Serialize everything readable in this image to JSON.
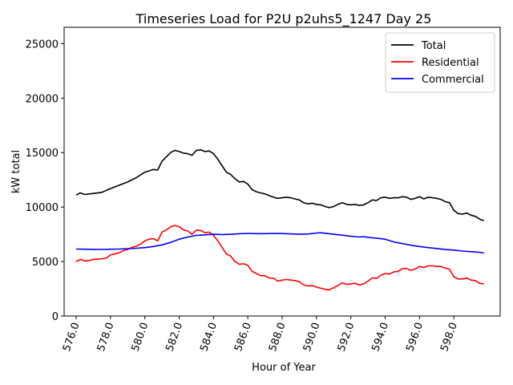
{
  "chart_data": {
    "type": "line",
    "title": "Timeseries Load for P2U p2uhs5_1247  Day 25",
    "xlabel": "Hour of Year",
    "ylabel": "kW total",
    "xlim": [
      575.3,
      600.7
    ],
    "ylim": [
      0,
      26500
    ],
    "xticks": [
      576,
      578,
      580,
      582,
      584,
      586,
      588,
      590,
      592,
      594,
      596,
      598
    ],
    "xtick_labels": [
      "576.0",
      "578.0",
      "580.0",
      "582.0",
      "584.0",
      "586.0",
      "588.0",
      "590.0",
      "592.0",
      "594.0",
      "596.0",
      "598.0"
    ],
    "yticks": [
      0,
      5000,
      10000,
      15000,
      20000,
      25000
    ],
    "ytick_labels": [
      "0",
      "5000",
      "10000",
      "15000",
      "20000",
      "25000"
    ],
    "grid": false,
    "legend_position": "top-right",
    "series": [
      {
        "name": "Total",
        "color": "#000000",
        "points": [
          [
            576.0,
            11100
          ],
          [
            576.25,
            11300
          ],
          [
            576.5,
            11150
          ],
          [
            577.0,
            11250
          ],
          [
            577.5,
            11350
          ],
          [
            578.0,
            11700
          ],
          [
            578.5,
            12000
          ],
          [
            579.0,
            12300
          ],
          [
            579.5,
            12700
          ],
          [
            580.0,
            13200
          ],
          [
            580.5,
            13450
          ],
          [
            580.75,
            13400
          ],
          [
            581.0,
            14200
          ],
          [
            581.25,
            14600
          ],
          [
            581.5,
            15000
          ],
          [
            581.75,
            15200
          ],
          [
            582.0,
            15100
          ],
          [
            582.25,
            14950
          ],
          [
            582.5,
            14900
          ],
          [
            582.75,
            14750
          ],
          [
            583.0,
            15200
          ],
          [
            583.25,
            15250
          ],
          [
            583.5,
            15100
          ],
          [
            583.75,
            15150
          ],
          [
            584.0,
            14900
          ],
          [
            584.25,
            14400
          ],
          [
            584.5,
            13800
          ],
          [
            584.75,
            13200
          ],
          [
            585.0,
            13000
          ],
          [
            585.25,
            12600
          ],
          [
            585.5,
            12300
          ],
          [
            585.75,
            12350
          ],
          [
            586.0,
            12100
          ],
          [
            586.25,
            11600
          ],
          [
            586.5,
            11400
          ],
          [
            586.75,
            11300
          ],
          [
            587.0,
            11200
          ],
          [
            587.25,
            11050
          ],
          [
            587.5,
            10900
          ],
          [
            587.75,
            10800
          ],
          [
            588.0,
            10850
          ],
          [
            588.25,
            10900
          ],
          [
            588.5,
            10850
          ],
          [
            588.75,
            10750
          ],
          [
            589.0,
            10650
          ],
          [
            589.25,
            10400
          ],
          [
            589.5,
            10300
          ],
          [
            589.75,
            10350
          ],
          [
            590.0,
            10250
          ],
          [
            590.25,
            10200
          ],
          [
            590.5,
            10050
          ],
          [
            590.75,
            9950
          ],
          [
            591.0,
            10050
          ],
          [
            591.25,
            10250
          ],
          [
            591.5,
            10400
          ],
          [
            591.75,
            10250
          ],
          [
            592.0,
            10200
          ],
          [
            592.25,
            10250
          ],
          [
            592.5,
            10150
          ],
          [
            592.75,
            10200
          ],
          [
            593.0,
            10400
          ],
          [
            593.25,
            10650
          ],
          [
            593.5,
            10600
          ],
          [
            593.75,
            10850
          ],
          [
            594.0,
            10900
          ],
          [
            594.25,
            10800
          ],
          [
            594.5,
            10850
          ],
          [
            594.75,
            10850
          ],
          [
            595.0,
            10950
          ],
          [
            595.25,
            10900
          ],
          [
            595.5,
            10700
          ],
          [
            595.75,
            10800
          ],
          [
            596.0,
            10950
          ],
          [
            596.25,
            10750
          ],
          [
            596.5,
            10900
          ],
          [
            596.75,
            10850
          ],
          [
            597.0,
            10800
          ],
          [
            597.25,
            10700
          ],
          [
            597.5,
            10500
          ],
          [
            597.75,
            10400
          ],
          [
            598.0,
            9700
          ],
          [
            598.25,
            9400
          ],
          [
            598.5,
            9350
          ],
          [
            598.75,
            9450
          ],
          [
            599.0,
            9250
          ],
          [
            599.25,
            9150
          ],
          [
            599.5,
            8900
          ],
          [
            599.75,
            8750
          ]
        ]
      },
      {
        "name": "Residential",
        "color": "#ff0000",
        "points": [
          [
            576.0,
            5000
          ],
          [
            576.25,
            5200
          ],
          [
            576.5,
            5050
          ],
          [
            576.75,
            5100
          ],
          [
            577.0,
            5200
          ],
          [
            577.5,
            5250
          ],
          [
            577.75,
            5300
          ],
          [
            578.0,
            5600
          ],
          [
            578.25,
            5700
          ],
          [
            578.5,
            5800
          ],
          [
            578.75,
            6000
          ],
          [
            579.0,
            6100
          ],
          [
            579.25,
            6300
          ],
          [
            579.5,
            6400
          ],
          [
            579.75,
            6600
          ],
          [
            580.0,
            6900
          ],
          [
            580.25,
            7050
          ],
          [
            580.5,
            7100
          ],
          [
            580.75,
            6900
          ],
          [
            581.0,
            7700
          ],
          [
            581.25,
            7900
          ],
          [
            581.5,
            8200
          ],
          [
            581.75,
            8300
          ],
          [
            582.0,
            8200
          ],
          [
            582.25,
            7900
          ],
          [
            582.5,
            7800
          ],
          [
            582.75,
            7500
          ],
          [
            583.0,
            7900
          ],
          [
            583.25,
            7850
          ],
          [
            583.5,
            7650
          ],
          [
            583.75,
            7700
          ],
          [
            584.0,
            7400
          ],
          [
            584.25,
            6900
          ],
          [
            584.5,
            6300
          ],
          [
            584.75,
            5700
          ],
          [
            585.0,
            5500
          ],
          [
            585.25,
            5000
          ],
          [
            585.5,
            4750
          ],
          [
            585.75,
            4800
          ],
          [
            586.0,
            4650
          ],
          [
            586.25,
            4100
          ],
          [
            586.5,
            3900
          ],
          [
            586.75,
            3700
          ],
          [
            587.0,
            3700
          ],
          [
            587.25,
            3500
          ],
          [
            587.5,
            3450
          ],
          [
            587.75,
            3200
          ],
          [
            588.0,
            3300
          ],
          [
            588.25,
            3350
          ],
          [
            588.5,
            3300
          ],
          [
            588.75,
            3250
          ],
          [
            589.0,
            3150
          ],
          [
            589.25,
            2850
          ],
          [
            589.5,
            2750
          ],
          [
            589.75,
            2800
          ],
          [
            590.0,
            2650
          ],
          [
            590.25,
            2550
          ],
          [
            590.5,
            2450
          ],
          [
            590.75,
            2400
          ],
          [
            591.0,
            2600
          ],
          [
            591.25,
            2800
          ],
          [
            591.5,
            3050
          ],
          [
            591.75,
            2900
          ],
          [
            592.0,
            2950
          ],
          [
            592.25,
            3000
          ],
          [
            592.5,
            2850
          ],
          [
            592.75,
            2950
          ],
          [
            593.0,
            3200
          ],
          [
            593.25,
            3500
          ],
          [
            593.5,
            3450
          ],
          [
            593.75,
            3750
          ],
          [
            594.0,
            3900
          ],
          [
            594.25,
            3850
          ],
          [
            594.5,
            4050
          ],
          [
            594.75,
            4100
          ],
          [
            595.0,
            4350
          ],
          [
            595.25,
            4350
          ],
          [
            595.5,
            4200
          ],
          [
            595.75,
            4300
          ],
          [
            596.0,
            4550
          ],
          [
            596.25,
            4450
          ],
          [
            596.5,
            4600
          ],
          [
            596.75,
            4600
          ],
          [
            597.0,
            4550
          ],
          [
            597.25,
            4550
          ],
          [
            597.5,
            4400
          ],
          [
            597.75,
            4300
          ],
          [
            598.0,
            3600
          ],
          [
            598.25,
            3400
          ],
          [
            598.5,
            3400
          ],
          [
            598.75,
            3500
          ],
          [
            599.0,
            3300
          ],
          [
            599.25,
            3250
          ],
          [
            599.5,
            3000
          ],
          [
            599.75,
            2950
          ]
        ]
      },
      {
        "name": "Commercial",
        "color": "#0000ff",
        "points": [
          [
            576.0,
            6150
          ],
          [
            576.5,
            6130
          ],
          [
            577.0,
            6120
          ],
          [
            577.5,
            6110
          ],
          [
            578.0,
            6130
          ],
          [
            578.5,
            6150
          ],
          [
            579.0,
            6180
          ],
          [
            579.5,
            6220
          ],
          [
            580.0,
            6280
          ],
          [
            580.5,
            6380
          ],
          [
            581.0,
            6530
          ],
          [
            581.5,
            6750
          ],
          [
            582.0,
            7050
          ],
          [
            582.5,
            7250
          ],
          [
            583.0,
            7400
          ],
          [
            583.5,
            7450
          ],
          [
            584.0,
            7500
          ],
          [
            584.5,
            7480
          ],
          [
            585.0,
            7500
          ],
          [
            585.5,
            7550
          ],
          [
            586.0,
            7580
          ],
          [
            586.5,
            7560
          ],
          [
            587.0,
            7560
          ],
          [
            587.5,
            7580
          ],
          [
            588.0,
            7570
          ],
          [
            588.5,
            7540
          ],
          [
            589.0,
            7500
          ],
          [
            589.5,
            7520
          ],
          [
            590.0,
            7620
          ],
          [
            590.25,
            7640
          ],
          [
            590.5,
            7600
          ],
          [
            591.0,
            7500
          ],
          [
            591.5,
            7420
          ],
          [
            592.0,
            7320
          ],
          [
            592.5,
            7250
          ],
          [
            592.75,
            7290
          ],
          [
            593.0,
            7220
          ],
          [
            593.5,
            7150
          ],
          [
            594.0,
            7050
          ],
          [
            594.5,
            6800
          ],
          [
            595.0,
            6650
          ],
          [
            595.5,
            6500
          ],
          [
            596.0,
            6380
          ],
          [
            596.5,
            6280
          ],
          [
            597.0,
            6200
          ],
          [
            597.5,
            6100
          ],
          [
            598.0,
            6050
          ],
          [
            598.5,
            5960
          ],
          [
            599.0,
            5900
          ],
          [
            599.5,
            5850
          ],
          [
            599.75,
            5780
          ]
        ]
      }
    ]
  }
}
